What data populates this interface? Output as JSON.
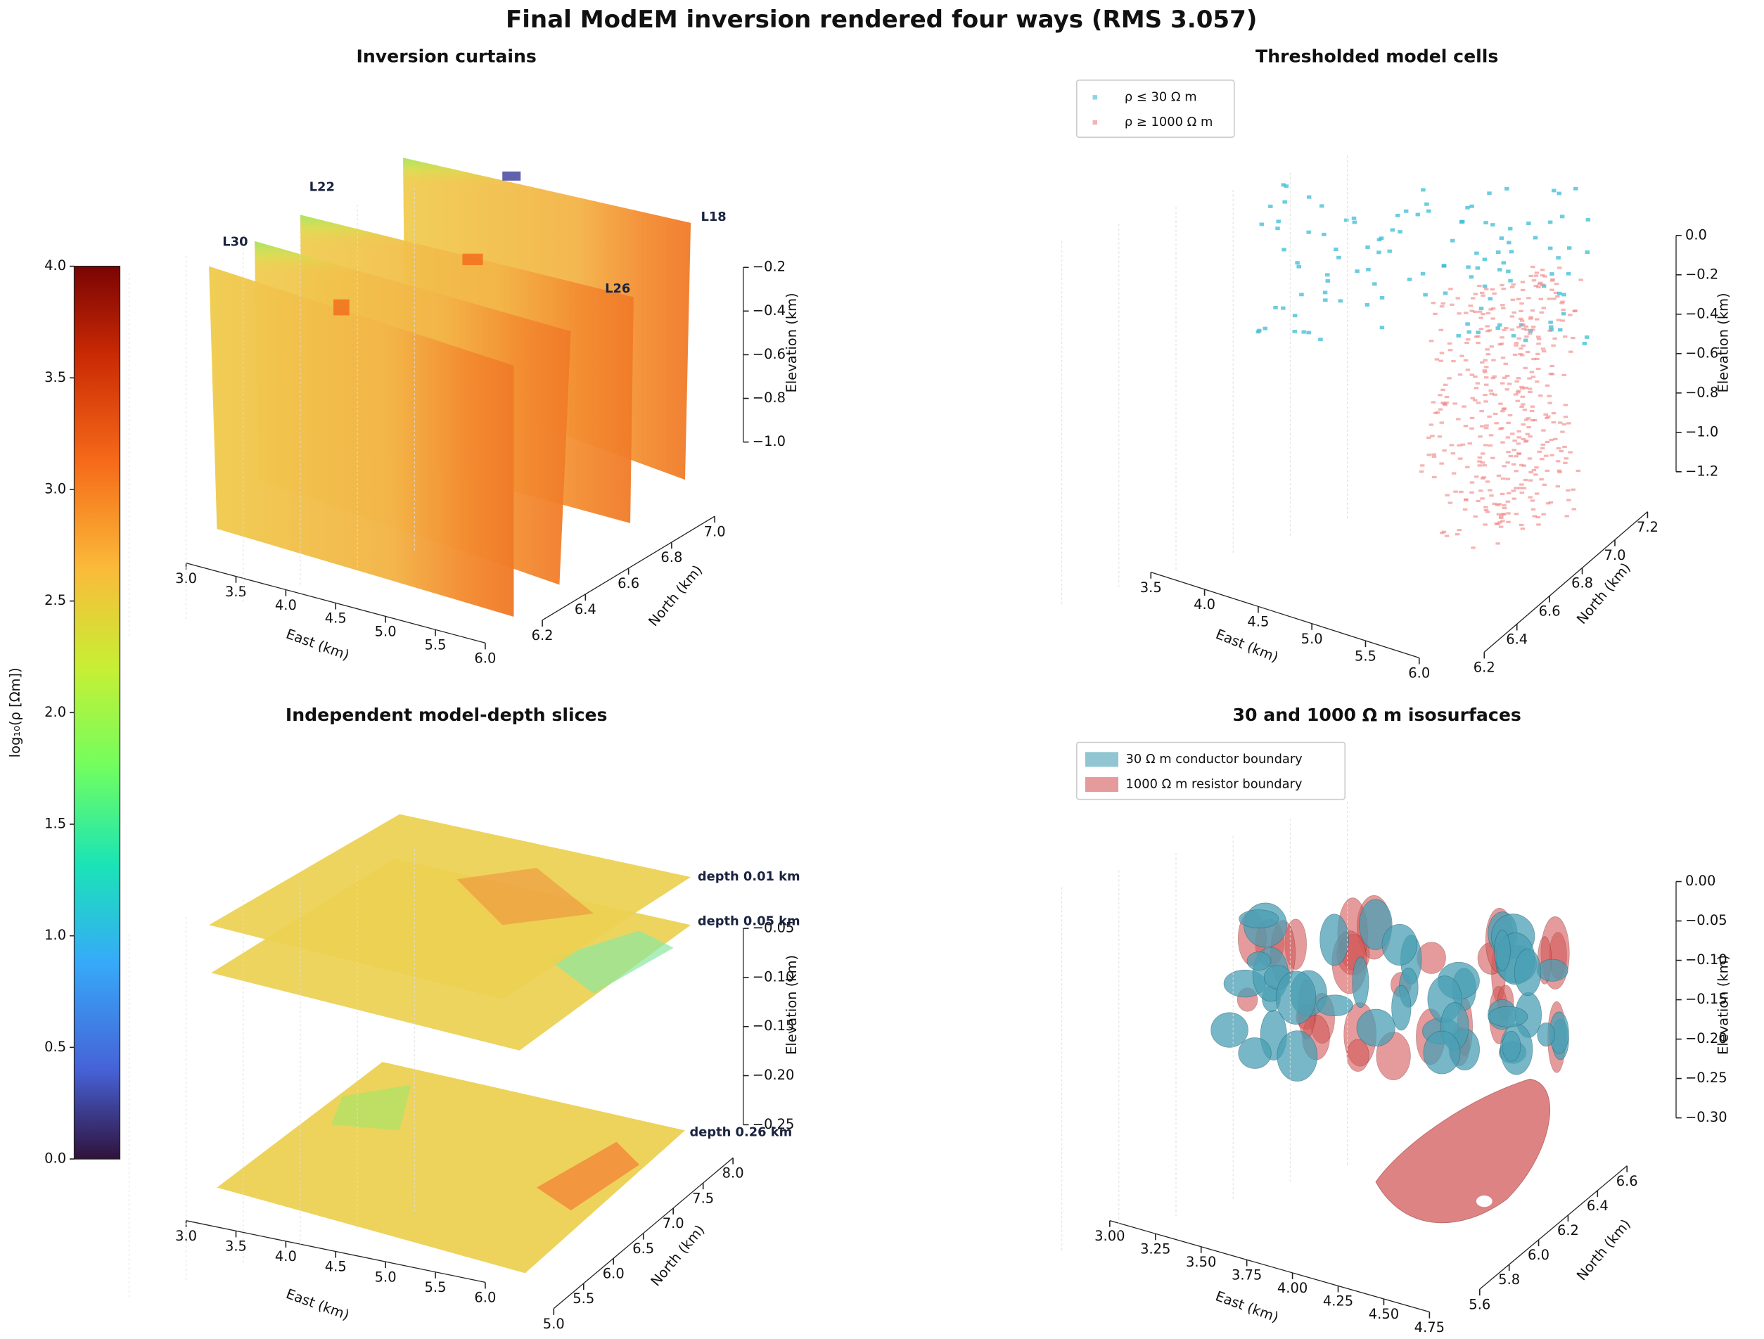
{
  "title": "Final ModEM inversion rendered four ways (RMS 3.057)",
  "colorbar": {
    "label": "log₁₀(ρ [Ωm])",
    "lim": [
      0,
      4
    ],
    "ticks": [
      {
        "value": 0,
        "label": "0.0"
      },
      0.5,
      {
        "value": 1,
        "label": "1.0"
      },
      1.5,
      {
        "value": 2,
        "label": "2.0"
      },
      2.5,
      {
        "value": 3,
        "label": "3.0"
      },
      3.5,
      {
        "value": 4,
        "label": "4.0"
      }
    ]
  },
  "chart_data": [
    {
      "type": "curtain3d",
      "title": "Inversion curtains",
      "xlabel": "East (km)",
      "ylabel": "North (km)",
      "zlabel": "Elevation (km)",
      "xlim": [
        3,
        6
      ],
      "xticks": [
        {
          "value": 3,
          "label": "3.0"
        },
        3.5,
        {
          "value": 4,
          "label": "4.0"
        },
        4.5,
        {
          "value": 5,
          "label": "5.0"
        },
        5.5,
        {
          "value": 6,
          "label": "6.0"
        }
      ],
      "ylim": [
        6.2,
        7
      ],
      "yticks": [
        6.2,
        6.4,
        6.6,
        6.8,
        {
          "value": 7,
          "label": "7.0"
        }
      ],
      "zlim": [
        -1,
        -0.2
      ],
      "zticks": [
        {
          "value": -1,
          "label": "−1.0"
        },
        {
          "value": -0.8,
          "label": "−0.8"
        },
        {
          "value": -0.6,
          "label": "−0.6"
        },
        {
          "value": -0.4,
          "label": "−0.4"
        },
        {
          "value": -0.2,
          "label": "−0.2"
        }
      ],
      "annotations": [
        "L30",
        "L22",
        "L18",
        "L26"
      ]
    },
    {
      "type": "scatter3d",
      "title": "Thresholded model cells",
      "xlabel": "East (km)",
      "ylabel": "North (km)",
      "zlabel": "Elevation (km)",
      "series": [
        {
          "name": "ρ ≤ 30 Ω m",
          "color": "#3bbcd6"
        },
        {
          "name": "ρ ≥ 1000 Ω m",
          "color": "#f08080"
        }
      ],
      "xlim": [
        3.5,
        6
      ],
      "xticks": [
        3.5,
        {
          "value": 4,
          "label": "4.0"
        },
        4.5,
        {
          "value": 5,
          "label": "5.0"
        },
        5.5,
        {
          "value": 6,
          "label": "6.0"
        }
      ],
      "ylim": [
        6.2,
        7.2
      ],
      "yticks": [
        6.2,
        6.4,
        6.6,
        6.8,
        {
          "value": 7,
          "label": "7.0"
        },
        7.2
      ],
      "zlim": [
        -1.2,
        0
      ],
      "zticks": [
        {
          "value": -1.2,
          "label": "−1.2"
        },
        {
          "value": -1,
          "label": "−1.0"
        },
        {
          "value": -0.8,
          "label": "−0.8"
        },
        {
          "value": -0.6,
          "label": "−0.6"
        },
        {
          "value": -0.4,
          "label": "−0.4"
        },
        {
          "value": -0.2,
          "label": "−0.2"
        },
        {
          "value": 0,
          "label": "0.0"
        }
      ]
    },
    {
      "type": "slices3d",
      "title": "Independent model-depth slices",
      "xlabel": "East (km)",
      "ylabel": "North (km)",
      "zlabel": "Elevation (km)",
      "xlim": [
        3,
        6
      ],
      "xticks": [
        {
          "value": 3,
          "label": "3.0"
        },
        3.5,
        {
          "value": 4,
          "label": "4.0"
        },
        4.5,
        {
          "value": 5,
          "label": "5.0"
        },
        5.5,
        {
          "value": 6,
          "label": "6.0"
        }
      ],
      "ylim": [
        5,
        8
      ],
      "yticks": [
        {
          "value": 5,
          "label": "5.0"
        },
        5.5,
        {
          "value": 6,
          "label": "6.0"
        },
        6.5,
        {
          "value": 7,
          "label": "7.0"
        },
        7.5,
        {
          "value": 8,
          "label": "8.0"
        }
      ],
      "zlim": [
        -0.25,
        -0.05
      ],
      "zticks": [
        {
          "value": -0.25,
          "label": "−0.25"
        },
        {
          "value": -0.2,
          "label": "−0.20"
        },
        {
          "value": -0.15,
          "label": "−0.15"
        },
        {
          "value": -0.1,
          "label": "−0.10"
        },
        {
          "value": -0.05,
          "label": "−0.05"
        }
      ],
      "annotations": [
        "depth 0.01 km",
        "depth 0.05 km",
        "depth 0.26 km"
      ]
    },
    {
      "type": "isosurface3d",
      "title": "30 and 1000 Ω m isosurfaces",
      "xlabel": "East (km)",
      "ylabel": "North (km)",
      "zlabel": "Elevation (km)",
      "series": [
        {
          "name": "30 Ω m conductor boundary",
          "color": "#4aa0b5"
        },
        {
          "name": "1000 Ω m resistor boundary",
          "color": "#d45a5a"
        }
      ],
      "xlim": [
        3,
        4.75
      ],
      "xticks": [
        {
          "value": 3,
          "label": "3.00"
        },
        3.25,
        {
          "value": 3.5,
          "label": "3.50"
        },
        3.75,
        {
          "value": 4,
          "label": "4.00"
        },
        4.25,
        {
          "value": 4.5,
          "label": "4.50"
        },
        4.75
      ],
      "ylim": [
        5.6,
        6.6
      ],
      "yticks": [
        5.6,
        5.8,
        {
          "value": 6,
          "label": "6.0"
        },
        6.2,
        6.4,
        6.6
      ],
      "zlim": [
        -0.3,
        0
      ],
      "zticks": [
        {
          "value": -0.3,
          "label": "−0.30"
        },
        {
          "value": -0.25,
          "label": "−0.25"
        },
        {
          "value": -0.2,
          "label": "−0.20"
        },
        {
          "value": -0.15,
          "label": "−0.15"
        },
        {
          "value": -0.1,
          "label": "−0.10"
        },
        {
          "value": -0.05,
          "label": "−0.05"
        },
        {
          "value": 0,
          "label": "0.00"
        }
      ]
    }
  ]
}
